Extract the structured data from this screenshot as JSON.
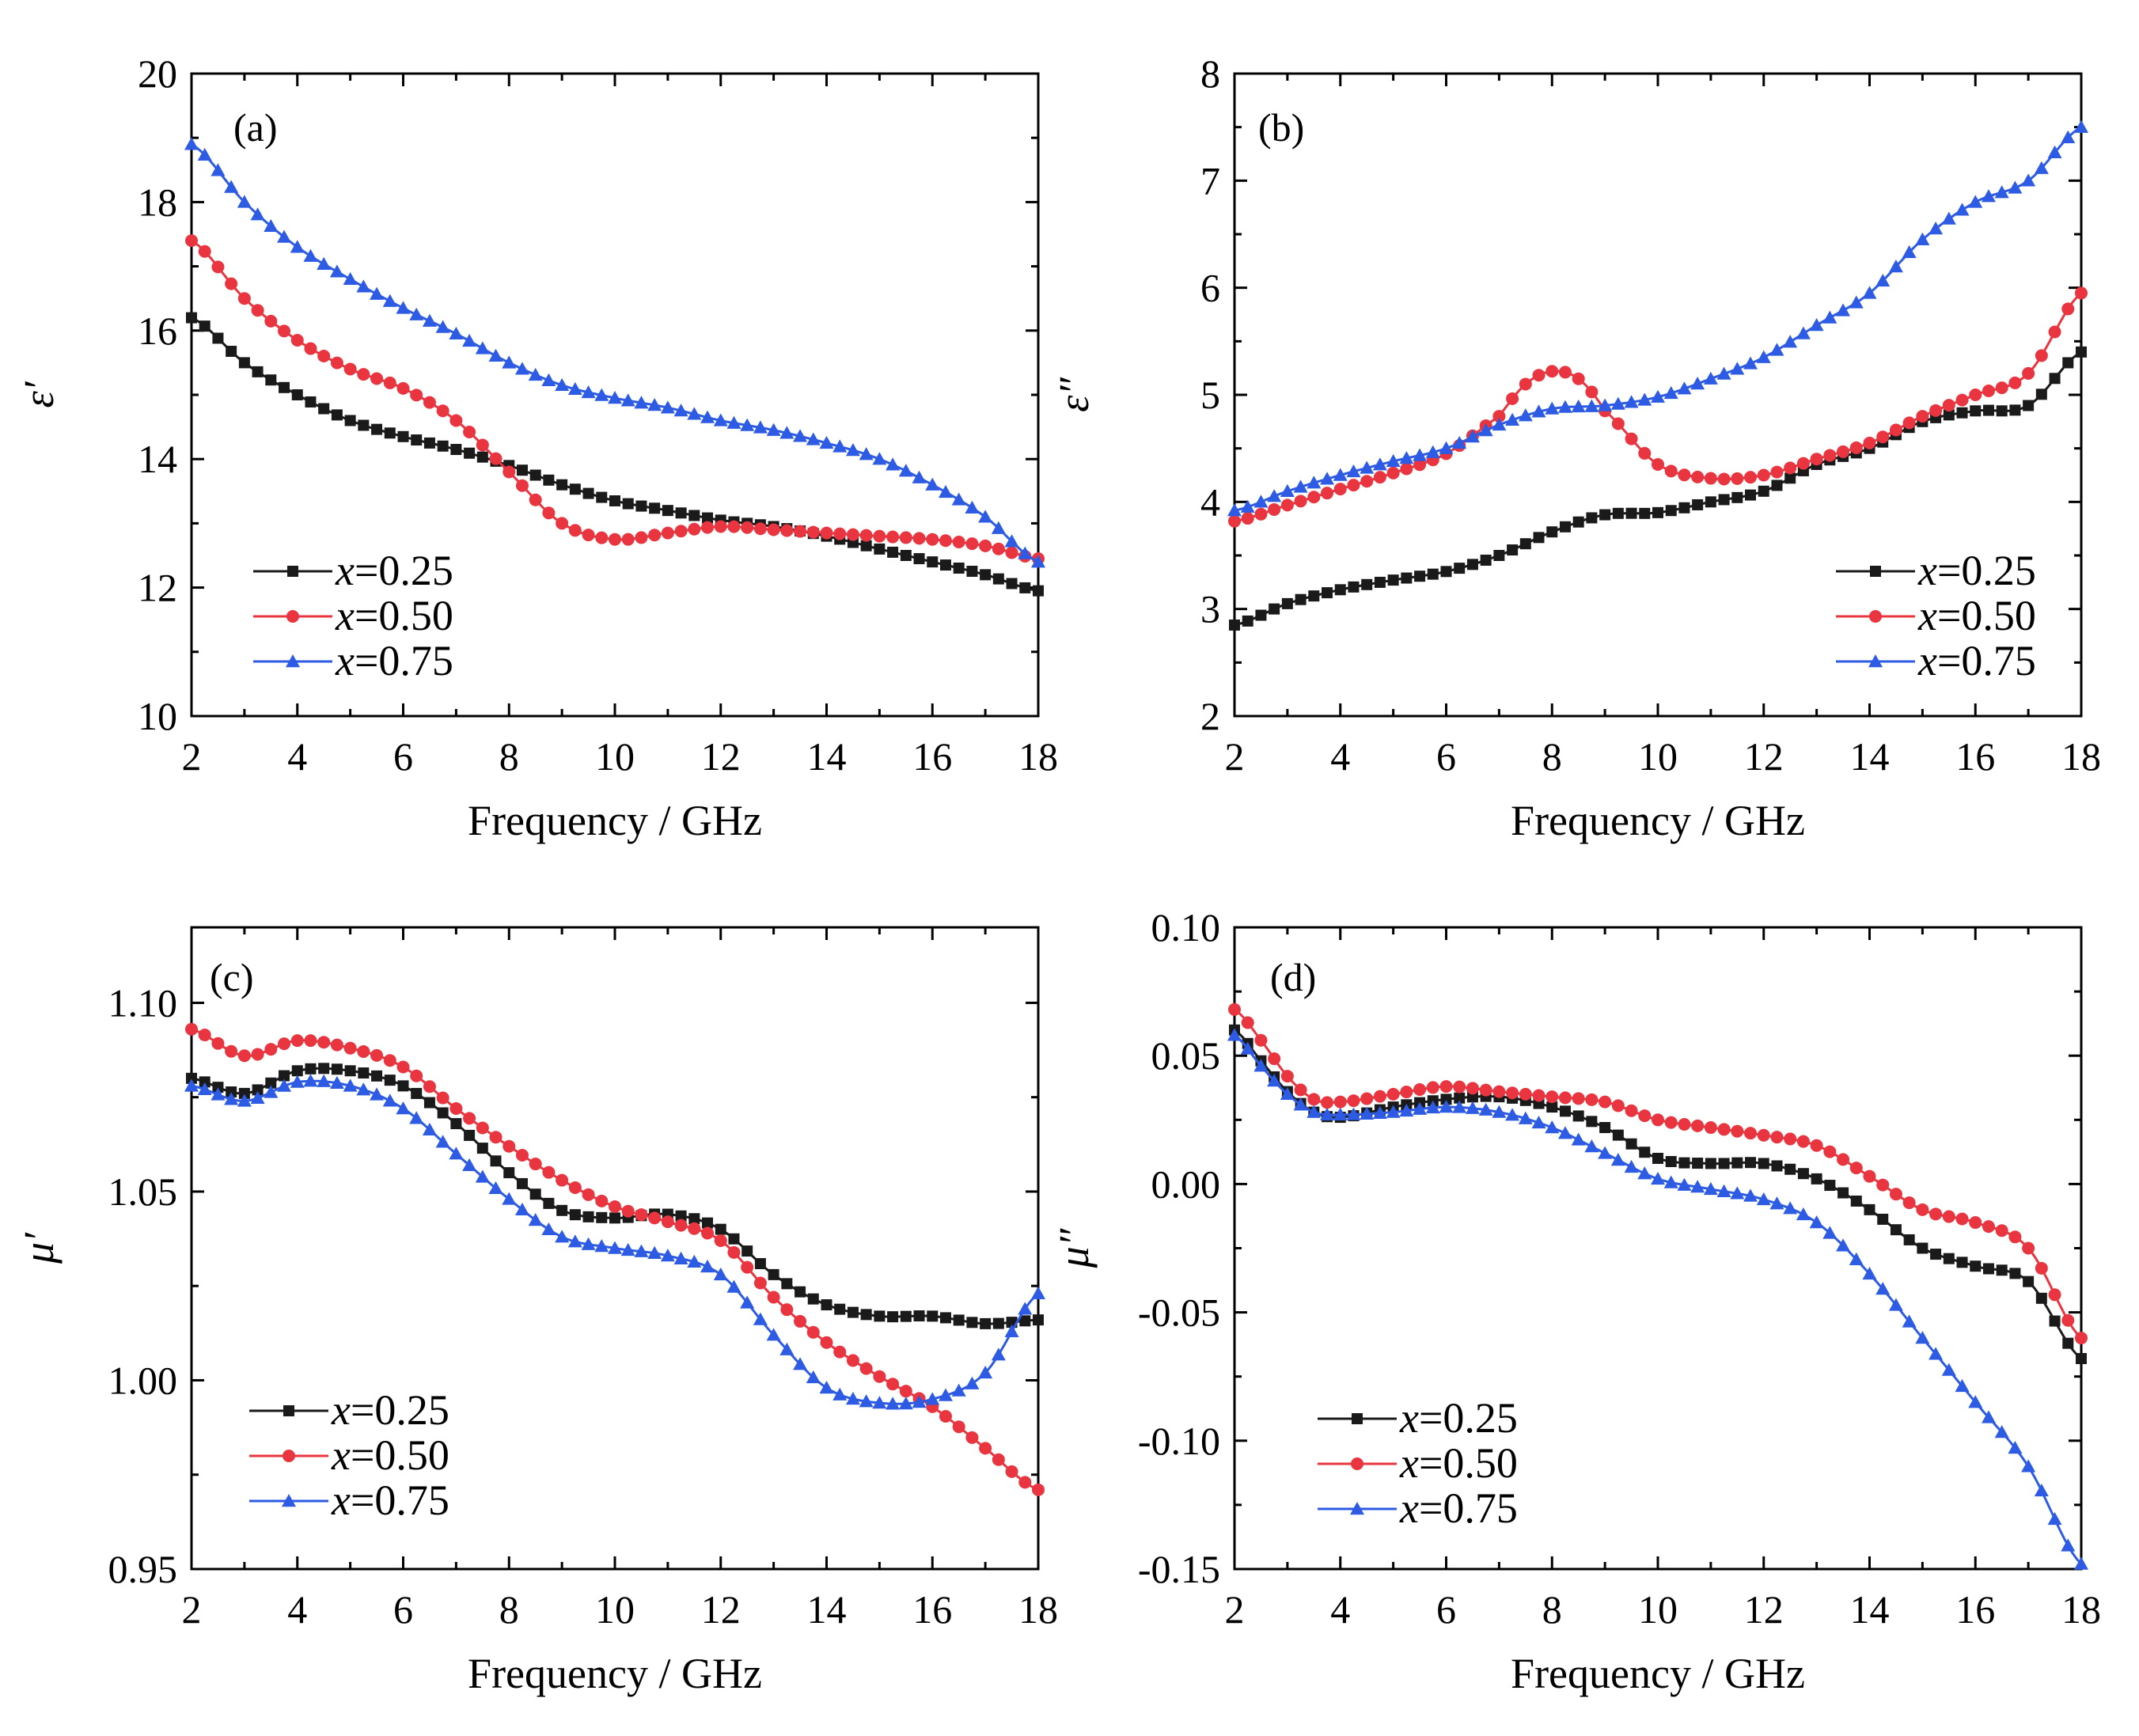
{
  "chart_data": [
    {
      "type": "line",
      "panel_label": "(a)",
      "xlabel": "Frequency / GHz",
      "ylabel": "ε′",
      "xlim": [
        2,
        18
      ],
      "ylim": [
        10,
        20
      ],
      "xticks": [
        "2",
        "4",
        "6",
        "8",
        "10",
        "12",
        "14",
        "16",
        "18"
      ],
      "yticks": [
        "10",
        "12",
        "14",
        "16",
        "18",
        "20"
      ],
      "legend_position": "bottom-left",
      "series": [
        {
          "name": "x=0.25",
          "color": "#1a1a1a",
          "marker": "square",
          "x": [
            2,
            3,
            4,
            5,
            6,
            7,
            8,
            9,
            10,
            11,
            12,
            13,
            14,
            15,
            16,
            17,
            18
          ],
          "y": [
            16.2,
            15.5,
            15.0,
            14.6,
            14.35,
            14.15,
            13.9,
            13.6,
            13.35,
            13.2,
            13.05,
            12.95,
            12.8,
            12.6,
            12.4,
            12.2,
            11.95
          ]
        },
        {
          "name": "x=0.50",
          "color": "#e8353f",
          "marker": "circle",
          "x": [
            2,
            3,
            4,
            5,
            6,
            7,
            8,
            9,
            10,
            11,
            12,
            13,
            14,
            15,
            16,
            17,
            18
          ],
          "y": [
            17.4,
            16.5,
            15.85,
            15.4,
            15.1,
            14.6,
            13.8,
            13.0,
            12.75,
            12.85,
            12.95,
            12.9,
            12.85,
            12.8,
            12.75,
            12.65,
            12.45
          ]
        },
        {
          "name": "x=0.75",
          "color": "#2d5be3",
          "marker": "triangle",
          "x": [
            2,
            3,
            4,
            5,
            6,
            7,
            8,
            9,
            10,
            11,
            12,
            13,
            14,
            15,
            16,
            17,
            18
          ],
          "y": [
            18.9,
            18.0,
            17.3,
            16.8,
            16.35,
            15.95,
            15.5,
            15.15,
            14.95,
            14.8,
            14.6,
            14.45,
            14.25,
            14.0,
            13.6,
            13.1,
            12.4
          ]
        }
      ]
    },
    {
      "type": "line",
      "panel_label": "(b)",
      "xlabel": "Frequency / GHz",
      "ylabel": "ε″",
      "xlim": [
        2,
        18
      ],
      "ylim": [
        2,
        8
      ],
      "xticks": [
        "2",
        "4",
        "6",
        "8",
        "10",
        "12",
        "14",
        "16",
        "18"
      ],
      "yticks": [
        "2",
        "3",
        "4",
        "5",
        "6",
        "7",
        "8"
      ],
      "legend_position": "bottom-right",
      "series": [
        {
          "name": "x=0.25",
          "color": "#1a1a1a",
          "marker": "square",
          "x": [
            2,
            3,
            4,
            5,
            6,
            7,
            8,
            9,
            10,
            11,
            12,
            13,
            14,
            15,
            16,
            17,
            18
          ],
          "y": [
            2.85,
            3.05,
            3.18,
            3.27,
            3.35,
            3.5,
            3.72,
            3.88,
            3.9,
            4.0,
            4.1,
            4.35,
            4.5,
            4.75,
            4.85,
            4.9,
            5.4
          ]
        },
        {
          "name": "x=0.50",
          "color": "#e8353f",
          "marker": "circle",
          "x": [
            2,
            3,
            4,
            5,
            6,
            7,
            7.5,
            8,
            8.5,
            9,
            10,
            11,
            12,
            13,
            14,
            15,
            16,
            17,
            18
          ],
          "y": [
            3.82,
            3.97,
            4.12,
            4.27,
            4.45,
            4.8,
            5.1,
            5.22,
            5.15,
            4.85,
            4.35,
            4.22,
            4.25,
            4.4,
            4.55,
            4.8,
            5.0,
            5.2,
            5.95
          ]
        },
        {
          "name": "x=0.75",
          "color": "#2d5be3",
          "marker": "triangle",
          "x": [
            2,
            3,
            4,
            5,
            6,
            7,
            8,
            9,
            10,
            11,
            12,
            13,
            14,
            15,
            16,
            17,
            18
          ],
          "y": [
            3.92,
            4.1,
            4.25,
            4.38,
            4.5,
            4.72,
            4.87,
            4.9,
            4.98,
            5.15,
            5.35,
            5.65,
            5.95,
            6.45,
            6.8,
            7.0,
            7.5
          ]
        }
      ]
    },
    {
      "type": "line",
      "panel_label": "(c)",
      "xlabel": "Frequency / GHz",
      "ylabel": "μ′",
      "xlim": [
        2,
        18
      ],
      "ylim": [
        0.95,
        1.12
      ],
      "yticks_values": [
        0.95,
        1.0,
        1.05,
        1.1
      ],
      "xticks": [
        "2",
        "4",
        "6",
        "8",
        "10",
        "12",
        "14",
        "16",
        "18"
      ],
      "yticks": [
        "0.95",
        "1.00",
        "1.05",
        "1.10"
      ],
      "legend_position": "bottom-left",
      "series": [
        {
          "name": "x=0.25",
          "color": "#1a1a1a",
          "marker": "square",
          "x": [
            2,
            3,
            4,
            5,
            6,
            7,
            8,
            9,
            10,
            11,
            12,
            13,
            14,
            15,
            16,
            17,
            18
          ],
          "y": [
            1.08,
            1.076,
            1.082,
            1.082,
            1.078,
            1.068,
            1.055,
            1.045,
            1.043,
            1.044,
            1.04,
            1.028,
            1.02,
            1.017,
            1.017,
            1.015,
            1.016
          ]
        },
        {
          "name": "x=0.50",
          "color": "#e8353f",
          "marker": "circle",
          "x": [
            2,
            3,
            4,
            5,
            6,
            7,
            8,
            9,
            10,
            11,
            12,
            13,
            14,
            15,
            16,
            17,
            18
          ],
          "y": [
            1.093,
            1.086,
            1.09,
            1.088,
            1.083,
            1.072,
            1.062,
            1.053,
            1.046,
            1.042,
            1.037,
            1.022,
            1.01,
            1.001,
            0.993,
            0.982,
            0.971
          ]
        },
        {
          "name": "x=0.75",
          "color": "#2d5be3",
          "marker": "triangle",
          "x": [
            2,
            3,
            4,
            5,
            6,
            7,
            8,
            9,
            10,
            11,
            12,
            13,
            14,
            15,
            16,
            17,
            18
          ],
          "y": [
            1.078,
            1.074,
            1.079,
            1.078,
            1.072,
            1.06,
            1.048,
            1.038,
            1.035,
            1.033,
            1.028,
            1.012,
            0.998,
            0.994,
            0.995,
            1.002,
            1.023
          ]
        }
      ]
    },
    {
      "type": "line",
      "panel_label": "(d)",
      "xlabel": "Frequency / GHz",
      "ylabel": "μ″",
      "xlim": [
        2,
        18
      ],
      "ylim": [
        -0.15,
        0.1
      ],
      "yticks_values": [
        -0.15,
        -0.1,
        -0.05,
        0.0,
        0.05,
        0.1
      ],
      "xticks": [
        "2",
        "4",
        "6",
        "8",
        "10",
        "12",
        "14",
        "16",
        "18"
      ],
      "yticks": [
        "-0.15",
        "-0.10",
        "-0.05",
        "0.00",
        "0.05",
        "0.10"
      ],
      "legend_position": "bottom-left",
      "series": [
        {
          "name": "x=0.25",
          "color": "#1a1a1a",
          "marker": "square",
          "x": [
            2,
            2.5,
            3,
            3.5,
            4,
            5,
            6,
            7,
            8,
            9,
            10,
            11,
            12,
            13,
            14,
            15,
            16,
            17,
            18
          ],
          "y": [
            0.06,
            0.048,
            0.036,
            0.028,
            0.026,
            0.03,
            0.033,
            0.034,
            0.03,
            0.022,
            0.01,
            0.008,
            0.008,
            0.002,
            -0.01,
            -0.025,
            -0.032,
            -0.038,
            -0.068
          ]
        },
        {
          "name": "x=0.50",
          "color": "#e8353f",
          "marker": "circle",
          "x": [
            2,
            2.5,
            3,
            3.5,
            4,
            5,
            6,
            7,
            8,
            9,
            10,
            11,
            12,
            13,
            14,
            15,
            16,
            17,
            18
          ],
          "y": [
            0.068,
            0.056,
            0.042,
            0.033,
            0.032,
            0.035,
            0.038,
            0.036,
            0.034,
            0.032,
            0.025,
            0.022,
            0.019,
            0.015,
            0.003,
            -0.01,
            -0.015,
            -0.025,
            -0.06
          ]
        },
        {
          "name": "x=0.75",
          "color": "#2d5be3",
          "marker": "triangle",
          "x": [
            2,
            2.5,
            3,
            3.5,
            4,
            5,
            6,
            7,
            8,
            9,
            10,
            11,
            12,
            13,
            14,
            15,
            16,
            17,
            18
          ],
          "y": [
            0.058,
            0.046,
            0.035,
            0.028,
            0.027,
            0.028,
            0.03,
            0.028,
            0.022,
            0.012,
            0.002,
            -0.002,
            -0.006,
            -0.015,
            -0.035,
            -0.06,
            -0.085,
            -0.11,
            -0.148
          ]
        }
      ]
    }
  ]
}
